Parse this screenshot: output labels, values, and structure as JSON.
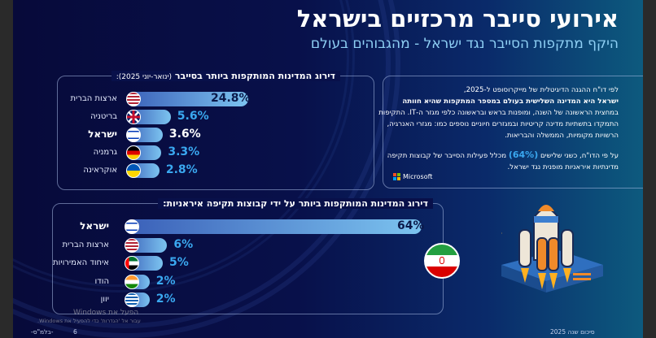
{
  "header": {
    "title": "אירועי סייבר מרכזיים בישראל",
    "subtitle": "היקף מתקפות הסייבר נגד ישראל - מהגבוהים בעולם"
  },
  "chart_data": [
    {
      "type": "bar",
      "title": "דירוג המדינות המותקפות ביותר בסייבר",
      "title_note": "(ינואר-יוני 2025):",
      "categories": [
        "ארצות הברית",
        "בריטניה",
        "ישראל",
        "גרמניה",
        "אוקראינה"
      ],
      "values": [
        24.8,
        5.6,
        3.6,
        3.3,
        2.8
      ],
      "value_labels": [
        "24.8%",
        "5.6%",
        "3.6%",
        "3.3%",
        "2.8%"
      ],
      "flags": [
        "us",
        "uk",
        "il",
        "de",
        "ua"
      ],
      "highlight": "ישראל"
    },
    {
      "type": "bar",
      "title": "דירוג המדינות המותקפות ביותר על ידי קבוצות תקיפה איראניות:",
      "categories": [
        "ישראל",
        "ארצות הברית",
        "איחוד האמירויות",
        "הודו",
        "יוון"
      ],
      "values": [
        64,
        6,
        5,
        2,
        2
      ],
      "value_labels": [
        "64%",
        "6%",
        "5%",
        "2%",
        "2%"
      ],
      "flags": [
        "il",
        "us",
        "ae",
        "in",
        "gr"
      ],
      "highlight": "ישראל"
    }
  ],
  "info": {
    "line1": "לפי דו\"ח ההגנה הדיגיטלית של מייקרוסופט ל-2025,",
    "line2_bold": "ישראל היא המדינה השלישית בעולם במספר המתקפות שהיא חוותה",
    "line3": "במחצית הראשונה של השנה, ומופנות בראש ובראשונה כלפי מגזר ה-IT. התקיפות התמקדו בתשתיות מדינה קריטיות ובמגזרים חיוניים נוספים כמו: מגזרי האנרגיה, הרשויות מקומיות, הממשלה והבריאות.",
    "p2_start": "על פי הדו\"ח, כשני שלישים",
    "p2_highlight": "(64%)",
    "p2_end": "מכלל פעילות הסייבר של קבוצות תקיפה מדינתיות איראניות מופנית נגד ישראל.",
    "source": "Microsoft"
  },
  "footer": {
    "left_class": "-בלמ\"ס-",
    "page": "6",
    "right": "סיכום שנה 2025"
  },
  "watermark": {
    "line1": "הפעל את Windows",
    "line2": "עבור אל 'הגדרות' כדי להפעיל את Windows."
  },
  "colors": {
    "accent": "#3aa8f0",
    "bar_start": "#3a5fb8",
    "bar_end": "#7cc4f0",
    "background": "#08104a"
  }
}
